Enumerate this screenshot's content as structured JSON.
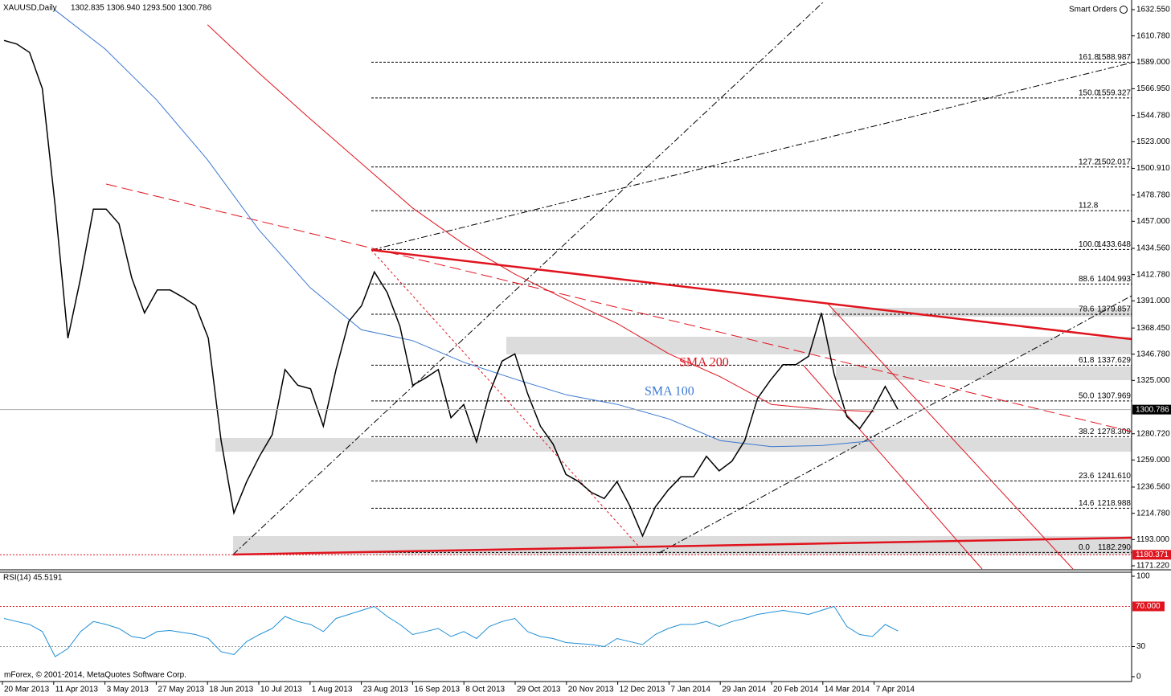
{
  "chart_data": {
    "type": "line",
    "title": "XAUUSD,Daily",
    "quote": "1302.835 1306.940 1293.500 1300.786",
    "smart_orders": "Smart Orders",
    "footer": "mForex, © 2001-2014, MetaQuotes Software Corp.",
    "categories": [
      "20 Mar 2013",
      "11 Apr 2013",
      "3 May 2013",
      "27 May 2013",
      "18 Jun 2013",
      "10 Jul 2013",
      "1 Aug 2013",
      "23 Aug 2013",
      "16 Sep 2013",
      "8 Oct 2013",
      "29 Oct 2013",
      "20 Nov 2013",
      "12 Dec 2013",
      "7 Jan 2014",
      "29 Jan 2014",
      "20 Feb 2014",
      "14 Mar 2014",
      "7 Apr 2014"
    ],
    "closes": [
      1607,
      1604,
      1597,
      1567,
      1470,
      1360,
      1410,
      1467,
      1467,
      1455,
      1410,
      1381,
      1400,
      1400,
      1394,
      1387,
      1360,
      1275,
      1215,
      1241,
      1262,
      1280,
      1334,
      1321,
      1318,
      1287,
      1334,
      1374,
      1387,
      1415,
      1398,
      1370,
      1321,
      1327,
      1334,
      1294,
      1305,
      1274,
      1314,
      1341,
      1347,
      1314,
      1287,
      1272,
      1247,
      1241,
      1232,
      1227,
      1241,
      1221,
      1196,
      1220,
      1234,
      1245,
      1245,
      1262,
      1250,
      1258,
      1275,
      1310,
      1325,
      1338,
      1338,
      1345,
      1381,
      1330,
      1295,
      1285,
      1300,
      1320,
      1300.786
    ],
    "color": "#000000",
    "series": [
      {
        "name": "SMA 200",
        "color": "#e0141e",
        "values": [
          null,
          null,
          null,
          null,
          1620,
          1580,
          1542,
          1505,
          1468,
          1438,
          1413,
          1392,
          1372,
          1347,
          1328,
          1305,
          1301,
          1299
        ]
      },
      {
        "name": "SMA 100",
        "color": "#3a78d0",
        "values": [
          null,
          1633,
          1600,
          1558,
          1508,
          1450,
          1402,
          1367,
          1358,
          1340,
          1326,
          1313,
          1305,
          1293,
          1275,
          1270,
          1271,
          1275
        ]
      }
    ],
    "ylim": [
      1168.55,
      1640.55
    ],
    "yticks": [
      {
        "value": 1632.55,
        "label": "1632.550"
      },
      {
        "value": 1610.78,
        "label": "1610.780"
      },
      {
        "value": 1589,
        "label": "1589.000"
      },
      {
        "value": 1566.95,
        "label": "1566.950"
      },
      {
        "value": 1544.78,
        "label": "1544.780"
      },
      {
        "value": 1523,
        "label": "1523.000"
      },
      {
        "value": 1500.91,
        "label": "1500.910"
      },
      {
        "value": 1478.78,
        "label": "1478.780"
      },
      {
        "value": 1457,
        "label": "1457.000"
      },
      {
        "value": 1434.56,
        "label": "1434.560"
      },
      {
        "value": 1412.78,
        "label": "1412.780"
      },
      {
        "value": 1391,
        "label": "1391.000"
      },
      {
        "value": 1368.45,
        "label": "1368.450"
      },
      {
        "value": 1346.78,
        "label": "1346.780"
      },
      {
        "value": 1325,
        "label": "1325.000"
      },
      {
        "value": 1280.72,
        "label": "1280.720"
      },
      {
        "value": 1259,
        "label": "1259.000"
      },
      {
        "value": 1236.56,
        "label": "1236.560"
      },
      {
        "value": 1214.78,
        "label": "1214.780"
      },
      {
        "value": 1193,
        "label": "1193.000"
      },
      {
        "value": 1171.22,
        "label": "1171.220"
      }
    ],
    "last_price": 1300.786,
    "low_price": 1180.371,
    "fib_levels": [
      {
        "ratio": "161.8",
        "price": 1588.987
      },
      {
        "ratio": "150.0",
        "price": 1559.327
      },
      {
        "ratio": "127.2",
        "price": 1502.017
      },
      {
        "ratio": "112.8",
        "price": 1465.82
      },
      {
        "ratio": "100.0",
        "price": 1433.648
      },
      {
        "ratio": "88.6",
        "price": 1404.993
      },
      {
        "ratio": "78.6",
        "price": 1379.857
      },
      {
        "ratio": "61.8",
        "price": 1337.629
      },
      {
        "ratio": "50.0",
        "price": 1307.969
      },
      {
        "ratio": "38.2",
        "price": 1278.309
      },
      {
        "ratio": "23.6",
        "price": {
          "value": 1241.61,
          "label": "1241.610"
        }
      },
      {
        "ratio": "14.6",
        "price": 1218.988
      },
      {
        "ratio": "0.0",
        "price": {
          "value": 1182.29,
          "label": "1182.290"
        }
      }
    ],
    "rsi": {
      "title": "RSI(14) 45.5191",
      "color": "#1f8fd6",
      "values": [
        58,
        55,
        52,
        45,
        20,
        28,
        45,
        55,
        52,
        48,
        40,
        38,
        45,
        46,
        44,
        42,
        38,
        25,
        22,
        35,
        42,
        48,
        60,
        55,
        52,
        45,
        58,
        62,
        66,
        70,
        60,
        52,
        42,
        45,
        48,
        40,
        45,
        38,
        50,
        55,
        58,
        45,
        40,
        38,
        34,
        33,
        32,
        30,
        38,
        35,
        32,
        42,
        48,
        52,
        52,
        55,
        50,
        55,
        58,
        62,
        64,
        66,
        64,
        62,
        66,
        70,
        50,
        42,
        40,
        52,
        45.5191
      ],
      "ylim": [
        -4.8,
        104
      ],
      "yticks": [
        100,
        30,
        0
      ],
      "level": {
        "value": 70,
        "label": "70.000"
      }
    }
  }
}
